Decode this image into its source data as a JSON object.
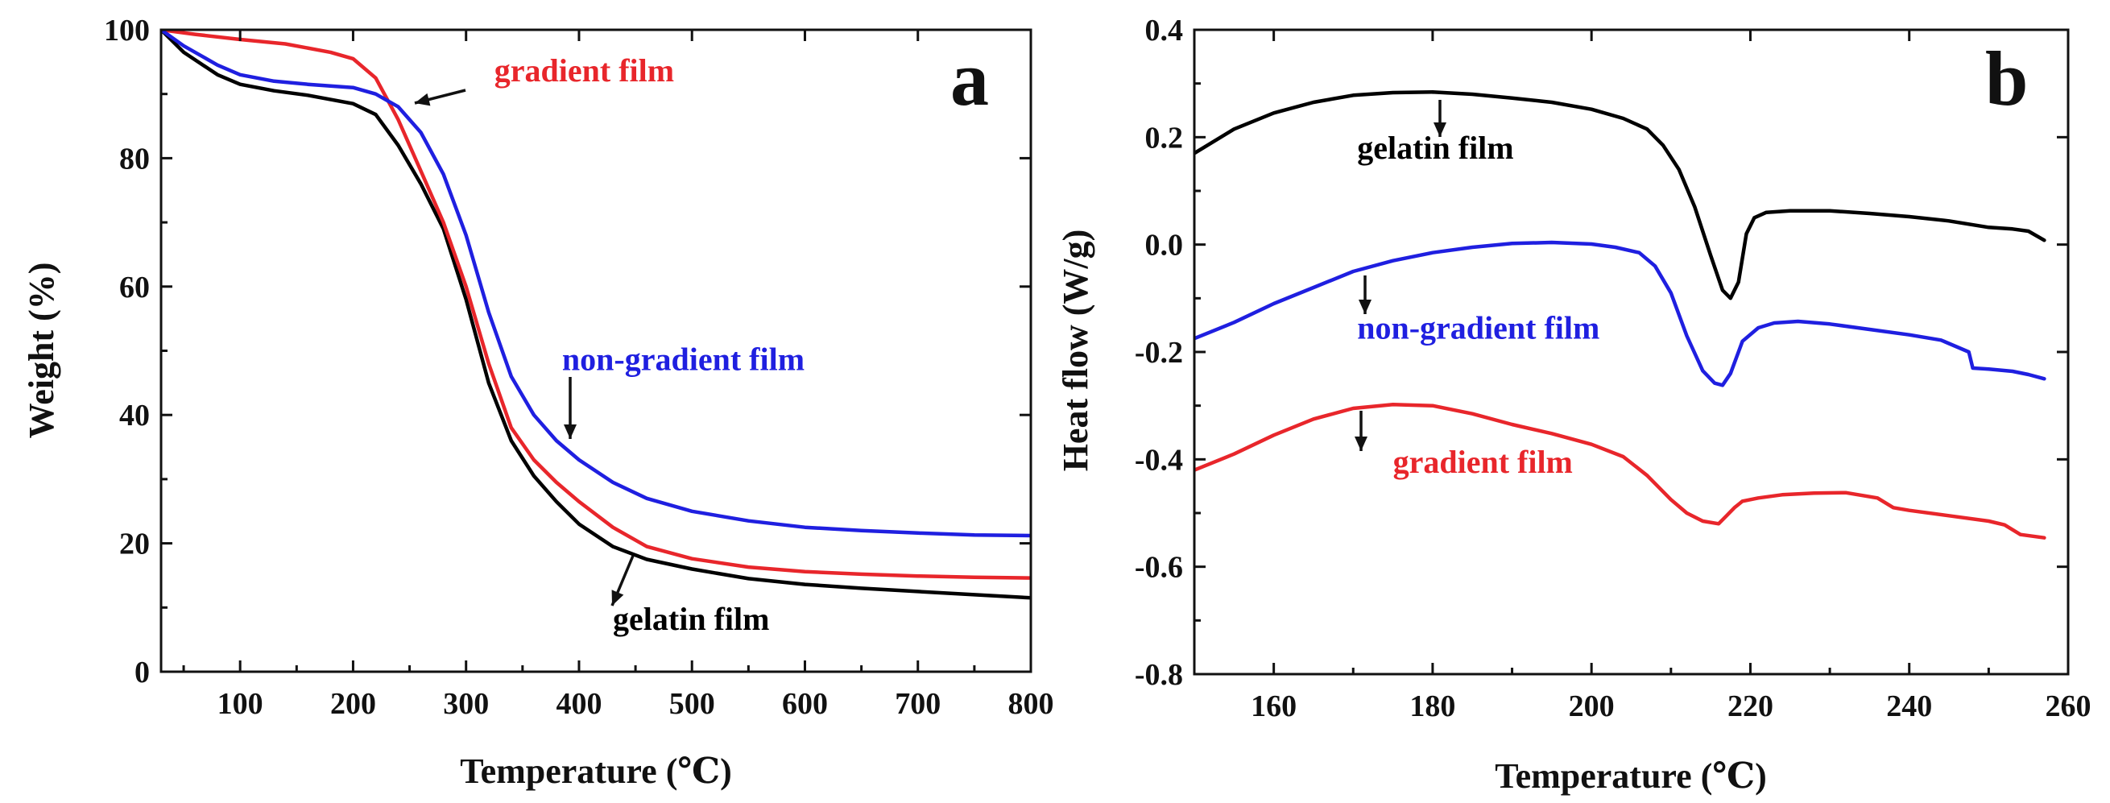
{
  "chart_data": [
    {
      "type": "line",
      "panel": "a",
      "title": "",
      "xlabel": "Temperature (℃)",
      "ylabel": "Weight (%)",
      "xlim": [
        30,
        800
      ],
      "ylim": [
        0,
        100
      ],
      "xticks": [
        100,
        200,
        300,
        400,
        500,
        600,
        700,
        800
      ],
      "xtick_labels": [
        "100",
        "200",
        "300",
        "400",
        "500",
        "600",
        "700",
        "800"
      ],
      "yticks": [
        0,
        20,
        40,
        60,
        80,
        100
      ],
      "ytick_labels": [
        "0",
        "20",
        "40",
        "60",
        "80",
        "100"
      ],
      "series": [
        {
          "name": "gelatin film",
          "color": "#000000",
          "x": [
            30,
            50,
            80,
            100,
            130,
            160,
            200,
            220,
            240,
            260,
            280,
            300,
            320,
            340,
            360,
            380,
            400,
            430,
            460,
            500,
            550,
            600,
            650,
            700,
            750,
            800
          ],
          "y": [
            100,
            96.5,
            93,
            91.5,
            90.5,
            89.8,
            88.5,
            86.8,
            82,
            76,
            69,
            58,
            45,
            36,
            30.5,
            26.5,
            23,
            19.5,
            17.5,
            16,
            14.5,
            13.6,
            13,
            12.5,
            12,
            11.5
          ]
        },
        {
          "name": "gradient film",
          "color": "#e8262b",
          "x": [
            30,
            60,
            100,
            140,
            180,
            200,
            220,
            240,
            260,
            280,
            300,
            320,
            340,
            360,
            380,
            400,
            430,
            460,
            500,
            550,
            600,
            650,
            700,
            750,
            800
          ],
          "y": [
            100,
            99.3,
            98.5,
            97.8,
            96.5,
            95.5,
            92.5,
            86,
            78,
            70,
            60,
            48,
            38,
            33,
            29.5,
            26.5,
            22.5,
            19.5,
            17.6,
            16.3,
            15.6,
            15.2,
            14.9,
            14.7,
            14.6
          ]
        },
        {
          "name": "non-gradient film",
          "color": "#1f1fe0",
          "x": [
            30,
            50,
            80,
            100,
            130,
            160,
            200,
            220,
            240,
            260,
            280,
            300,
            320,
            340,
            360,
            380,
            400,
            430,
            460,
            500,
            550,
            600,
            650,
            700,
            750,
            800
          ],
          "y": [
            100,
            97.5,
            94.5,
            93,
            92,
            91.5,
            91,
            90,
            88,
            84,
            77.5,
            68,
            56,
            46,
            40,
            36,
            33,
            29.5,
            27,
            25,
            23.5,
            22.5,
            22,
            21.6,
            21.3,
            21.2
          ]
        }
      ],
      "annotations": [
        {
          "text": "gradient film",
          "color": "#e8262b",
          "x": 325,
          "y": 92
        },
        {
          "text": "non-gradient film",
          "color": "#1f1fe0",
          "x": 385,
          "y": 47
        },
        {
          "text": "gelatin film",
          "color": "#000000",
          "x": 430,
          "y": 6.5
        }
      ]
    },
    {
      "type": "line",
      "panel": "b",
      "title": "",
      "xlabel": "Temperature (℃)",
      "ylabel": "Heat flow (W/g)",
      "xlim": [
        150,
        260
      ],
      "ylim": [
        -0.8,
        0.4
      ],
      "xticks": [
        160,
        180,
        200,
        220,
        240,
        260
      ],
      "xtick_labels": [
        "160",
        "180",
        "200",
        "220",
        "240",
        "260"
      ],
      "yticks": [
        -0.8,
        -0.6,
        -0.4,
        -0.2,
        0.0,
        0.2,
        0.4
      ],
      "ytick_labels": [
        "-0.8",
        "-0.6",
        "-0.4",
        "-0.2",
        "0.0",
        "0.2",
        "0.4"
      ],
      "series": [
        {
          "name": "gelatin film",
          "color": "#000000",
          "x": [
            150,
            155,
            160,
            165,
            170,
            175,
            180,
            185,
            190,
            195,
            200,
            204,
            207,
            209,
            211,
            213,
            215,
            216.5,
            217.5,
            218.5,
            219.5,
            220.5,
            222,
            225,
            230,
            235,
            240,
            245,
            250,
            253,
            255,
            257
          ],
          "y": [
            0.17,
            0.215,
            0.245,
            0.265,
            0.278,
            0.283,
            0.284,
            0.28,
            0.273,
            0.265,
            0.252,
            0.235,
            0.215,
            0.185,
            0.14,
            0.07,
            -0.02,
            -0.085,
            -0.1,
            -0.07,
            0.02,
            0.05,
            0.06,
            0.063,
            0.063,
            0.058,
            0.052,
            0.044,
            0.032,
            0.029,
            0.025,
            0.008
          ]
        },
        {
          "name": "non-gradient film",
          "color": "#1f1fe0",
          "x": [
            150,
            155,
            160,
            165,
            170,
            175,
            180,
            185,
            190,
            195,
            200,
            203,
            206,
            208,
            210,
            212,
            214,
            215.5,
            216.5,
            217.5,
            219,
            221,
            223,
            226,
            230,
            235,
            240,
            244,
            247.5,
            248,
            250,
            253,
            255,
            257
          ],
          "y": [
            -0.175,
            -0.145,
            -0.11,
            -0.08,
            -0.05,
            -0.03,
            -0.015,
            -0.005,
            0.002,
            0.004,
            0.001,
            -0.005,
            -0.015,
            -0.04,
            -0.09,
            -0.17,
            -0.235,
            -0.258,
            -0.262,
            -0.24,
            -0.18,
            -0.155,
            -0.146,
            -0.143,
            -0.148,
            -0.158,
            -0.168,
            -0.178,
            -0.2,
            -0.23,
            -0.232,
            -0.236,
            -0.242,
            -0.25
          ]
        },
        {
          "name": "gradient film",
          "color": "#e8262b",
          "x": [
            150,
            155,
            160,
            165,
            170,
            175,
            180,
            185,
            190,
            195,
            200,
            204,
            207,
            210,
            212,
            214,
            216,
            217,
            218,
            219,
            221,
            224,
            228,
            232,
            236,
            238,
            240,
            245,
            250,
            252,
            254,
            257
          ],
          "y": [
            -0.42,
            -0.39,
            -0.355,
            -0.325,
            -0.305,
            -0.298,
            -0.3,
            -0.315,
            -0.335,
            -0.352,
            -0.372,
            -0.395,
            -0.43,
            -0.475,
            -0.5,
            -0.515,
            -0.52,
            -0.505,
            -0.49,
            -0.478,
            -0.472,
            -0.466,
            -0.463,
            -0.462,
            -0.472,
            -0.49,
            -0.495,
            -0.505,
            -0.515,
            -0.522,
            -0.54,
            -0.546
          ]
        }
      ],
      "annotations": [
        {
          "text": "gelatin film",
          "color": "#000000",
          "x": 170.5,
          "y": 0.16
        },
        {
          "text": "non-gradient film",
          "color": "#1f1fe0",
          "x": 170.5,
          "y": -0.175
        },
        {
          "text": "gradient film",
          "color": "#e8262b",
          "x": 175,
          "y": -0.425
        }
      ]
    }
  ]
}
